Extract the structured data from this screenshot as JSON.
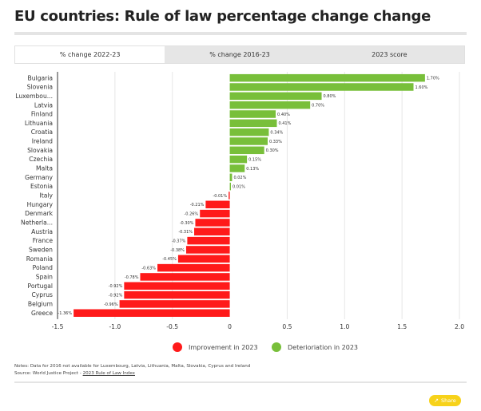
{
  "header": {
    "title": "EU countries: Rule of law percentage change change"
  },
  "tabs": [
    {
      "label": "% change 2022-23",
      "active": true
    },
    {
      "label": "% change 2016-23",
      "active": false
    },
    {
      "label": "2023 score",
      "active": false
    }
  ],
  "colors": {
    "improvement": "#ff1a1a",
    "deterioration": "#78bf3a",
    "share": "#f7d21a"
  },
  "legend": {
    "improvement_label": "Improvement in 2023",
    "deterioration_label": "Deterioriation in 2023"
  },
  "notes": {
    "line1": "Notes: Data for 2016 not available for Luxembourg, Latvia, Lithuania, Malta, Slovakia, Cyprus and Ireland",
    "source_prefix": "Source: World Justice Project - ",
    "source_link": "2023 Rule of Law Index"
  },
  "share": {
    "label": "Share",
    "icon": "share-icon"
  },
  "chart_data": {
    "type": "bar",
    "orientation": "horizontal",
    "categories": [
      "Bulgaria",
      "Slovenia",
      "Luxembou...",
      "Latvia",
      "Finland",
      "Lithuania",
      "Croatia",
      "Ireland",
      "Slovakia",
      "Czechia",
      "Malta",
      "Germany",
      "Estonia",
      "Italy",
      "Hungary",
      "Denmark",
      "Netherla...",
      "Austria",
      "France",
      "Sweden",
      "Romania",
      "Poland",
      "Spain",
      "Portugal",
      "Cyprus",
      "Belgium",
      "Greece"
    ],
    "values": [
      1.7,
      1.6,
      0.8,
      0.7,
      0.4,
      0.41,
      0.34,
      0.33,
      0.3,
      0.15,
      0.13,
      0.02,
      0.01,
      -0.01,
      -0.21,
      -0.26,
      -0.3,
      -0.31,
      -0.37,
      -0.38,
      -0.45,
      -0.63,
      -0.78,
      -0.92,
      -0.92,
      -0.96,
      -1.36
    ],
    "labels": [
      "1.70%",
      "1.60%",
      "0.80%",
      "0.70%",
      "0.40%",
      "0.41%",
      "0.34%",
      "0.33%",
      "0.30%",
      "0.15%",
      "0.13%",
      "0.02%",
      "0.01%",
      "-0.01%",
      "-0.21%",
      "-0.26%",
      "-0.30%",
      "-0.31%",
      "-0.37%",
      "-0.38%",
      "-0.45%",
      "-0.63%",
      "-0.78%",
      "-0.92%",
      "-0.92%",
      "-0.96%",
      "-1.36%"
    ],
    "xlim": [
      -1.5,
      2.0
    ],
    "xticks": [
      -1.5,
      -1,
      -0.5,
      0,
      0.5,
      1,
      1.5,
      2
    ],
    "xtick_labels": [
      "-1.5",
      "-1.0",
      "-0.5",
      "0",
      "0.5",
      "1.0",
      "1.5",
      "2.0"
    ],
    "grid": true,
    "legend_position": "bottom"
  }
}
